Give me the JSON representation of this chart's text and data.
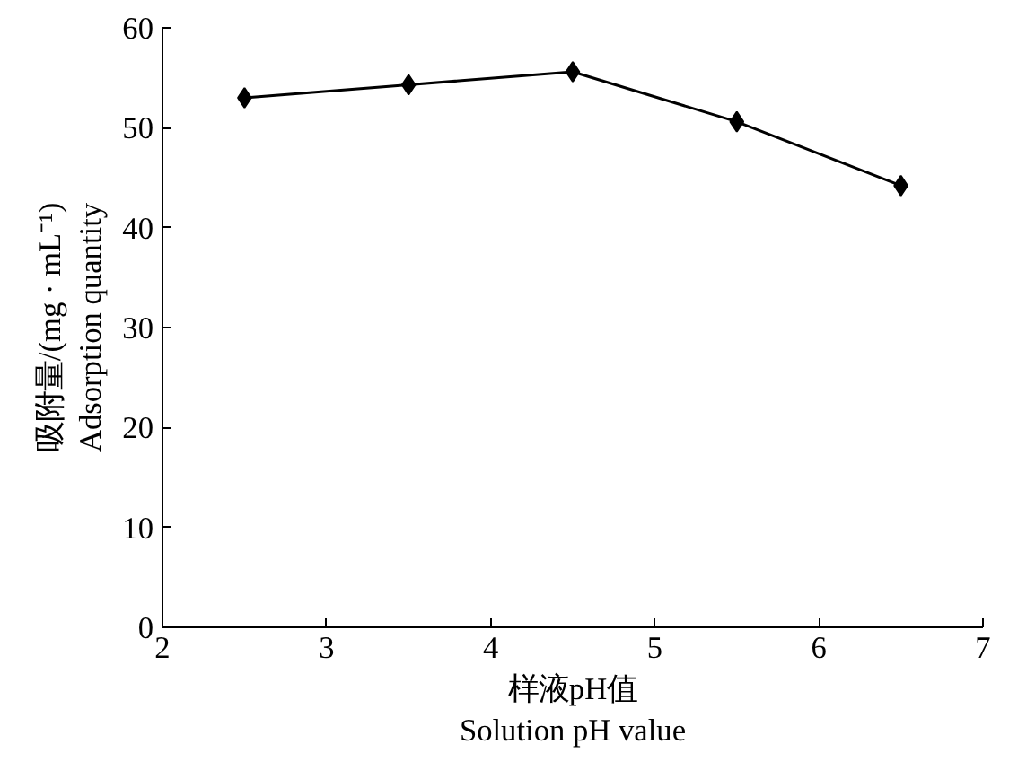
{
  "chart_data": {
    "type": "line",
    "xlabel": "样液pH值\nSolution pH value",
    "ylabel": "吸附量/(mg · mL⁻¹)\nAdsorption quantity",
    "x": [
      2.5,
      3.5,
      4.5,
      5.5,
      6.5
    ],
    "series": [
      {
        "color": "#000000",
        "values": [
          53.0,
          54.3,
          55.6,
          50.6,
          44.2
        ]
      }
    ],
    "xlim": [
      2,
      7
    ],
    "xticks": [
      2,
      3,
      4,
      5,
      6,
      7
    ],
    "ylim": [
      0,
      60
    ],
    "yticks": [
      0,
      10,
      20,
      30,
      40,
      50,
      60
    ],
    "marker": "diamond",
    "line_style": "solid"
  }
}
